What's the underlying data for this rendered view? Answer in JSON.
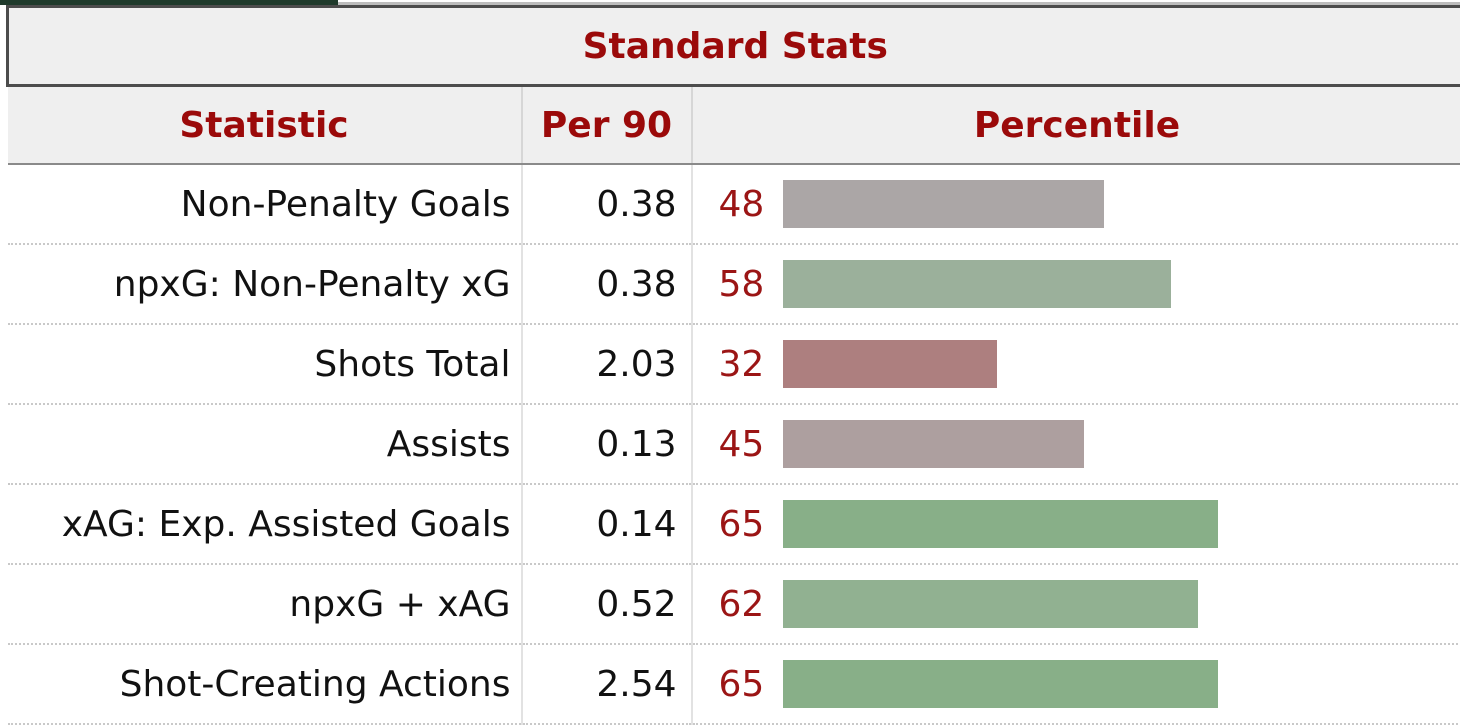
{
  "section_title": "Standard Stats",
  "columns": {
    "statistic": "Statistic",
    "per90": "Per 90",
    "percentile": "Percentile"
  },
  "rows": [
    {
      "statistic": "Non-Penalty Goals",
      "per90": "0.38",
      "percentile": "48",
      "bar_color": "#aba6a6"
    },
    {
      "statistic": "npxG: Non-Penalty xG",
      "per90": "0.38",
      "percentile": "58",
      "bar_color": "#9bb09b"
    },
    {
      "statistic": "Shots Total",
      "per90": "2.03",
      "percentile": "32",
      "bar_color": "#ad7f7f"
    },
    {
      "statistic": "Assists",
      "per90": "0.13",
      "percentile": "45",
      "bar_color": "#ad9f9f"
    },
    {
      "statistic": "xAG: Exp. Assisted Goals",
      "per90": "0.14",
      "percentile": "65",
      "bar_color": "#88af88"
    },
    {
      "statistic": "npxG + xAG",
      "per90": "0.52",
      "percentile": "62",
      "bar_color": "#91b191"
    },
    {
      "statistic": "Shot-Creating Actions",
      "per90": "2.54",
      "percentile": "65",
      "bar_color": "#88af88"
    }
  ],
  "colors": {
    "header_text": "#9b0a0a",
    "header_bg": "#efefef",
    "percentile_text": "#9b1515",
    "tab_accent": "#1f3a2b"
  }
}
